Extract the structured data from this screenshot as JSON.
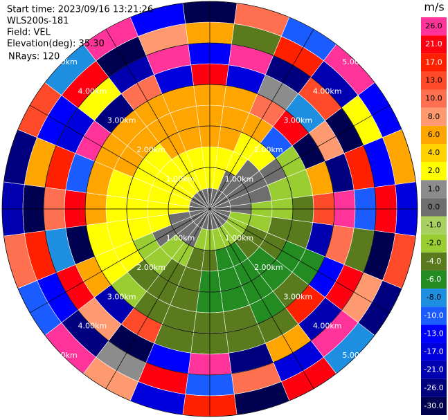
{
  "chart_data": {
    "type": "polar",
    "info": [
      "Start time: 2023/09/16 13:21:26",
      "WLS200s-181",
      "Field: VEL",
      "Elevation(deg): 35.30",
      "NRays: 120"
    ],
    "rlim": [
      0,
      5
    ],
    "range_rings": [
      {
        "value": 1,
        "label": "1.00km"
      },
      {
        "value": 2,
        "label": "2.00km"
      },
      {
        "value": 3,
        "label": "3.00km"
      },
      {
        "value": 4,
        "label": "4.00km"
      },
      {
        "value": 5,
        "label": "5.00km"
      }
    ],
    "azimuths": [
      0,
      15,
      30,
      45,
      60,
      75,
      90,
      105,
      120,
      135,
      150,
      165,
      180,
      195,
      210,
      225,
      240,
      255,
      270,
      285,
      300,
      315,
      330,
      345
    ],
    "range_edges_km": [
      0,
      0.5,
      1,
      1.5,
      2,
      2.5,
      3,
      3.5,
      4,
      4.5,
      5
    ],
    "values": [
      [
        0.5,
        3,
        3,
        7,
        7,
        7,
        23,
        -11,
        7,
        -28
      ],
      [
        0.5,
        3,
        3,
        7,
        7,
        7,
        -15,
        28,
        -3,
        11
      ],
      [
        0.5,
        0.5,
        3,
        3,
        7,
        11,
        1.5,
        -23,
        19,
        -9
      ],
      [
        0.5,
        0.5,
        0.5,
        3,
        -9,
        23,
        -7,
        15,
        -19,
        28
      ],
      [
        0.5,
        0.5,
        0.5,
        0.5,
        -1.5,
        -28,
        9,
        -28,
        3,
        -13
      ],
      [
        0.5,
        0.5,
        0.5,
        -1.5,
        -1.5,
        7,
        -23,
        19,
        -11,
        7
      ],
      [
        0.5,
        0.5,
        -1.5,
        -1.5,
        -3,
        15,
        28,
        -9,
        23,
        -17
      ],
      [
        0.5,
        -1.5,
        -1.5,
        -3,
        -3,
        -19,
        11,
        -3,
        -28,
        15
      ],
      [
        0.5,
        -1.5,
        -3,
        -3,
        -5,
        -5,
        -13,
        23,
        9,
        -23
      ],
      [
        0.5,
        -1.5,
        -3,
        -5,
        -5,
        -3,
        19,
        -19,
        28,
        -7
      ],
      [
        0.5,
        -1.5,
        -5,
        -5,
        -5,
        -5,
        -3,
        7,
        -15,
        23
      ],
      [
        0.5,
        -1.5,
        -5,
        -5,
        -5,
        -3,
        -3,
        -23,
        11,
        -28
      ],
      [
        0.5,
        -1.5,
        -3,
        -5,
        -5,
        -3,
        -3,
        28,
        -9,
        19
      ],
      [
        0.5,
        -1.5,
        -3,
        -3,
        -3,
        -3,
        -3,
        -11,
        23,
        -15
      ],
      [
        0.5,
        0.5,
        -1.5,
        -3,
        -3,
        -3,
        15,
        -28,
        1.5,
        9
      ],
      [
        0.5,
        0.5,
        -1.5,
        -1.5,
        -3,
        -1.5,
        -19,
        9,
        -23,
        28
      ],
      [
        0.5,
        0.5,
        0.5,
        -1.5,
        3,
        3,
        7,
        23,
        -13,
        -9
      ],
      [
        0.5,
        0.5,
        3,
        3,
        3,
        3,
        -28,
        -7,
        19,
        11
      ],
      [
        0.5,
        3,
        3,
        3,
        3,
        7,
        23,
        11,
        -28,
        -19
      ],
      [
        0.5,
        3,
        3,
        3,
        3,
        7,
        -9,
        19,
        7,
        -23
      ],
      [
        0.5,
        3,
        3,
        3,
        7,
        7,
        28,
        -15,
        -11,
        15
      ],
      [
        0.5,
        3,
        3,
        3,
        7,
        7,
        -23,
        3,
        23,
        -7
      ],
      [
        0.5,
        3,
        3,
        7,
        7,
        7,
        11,
        -19,
        -28,
        28
      ],
      [
        0.5,
        3,
        3,
        7,
        7,
        7,
        -15,
        28,
        9,
        -11
      ]
    ],
    "colorbar": {
      "label": "m/s",
      "clim": [
        -30,
        30
      ],
      "ticks": [
        {
          "value": -30,
          "label": "-30.0"
        },
        {
          "value": -26,
          "label": "-26.0"
        },
        {
          "value": -21,
          "label": "-21.0"
        },
        {
          "value": -17,
          "label": "-17.0"
        },
        {
          "value": -13,
          "label": "-13.0"
        },
        {
          "value": -10,
          "label": "-10.0"
        },
        {
          "value": -8,
          "label": "-8.0"
        },
        {
          "value": -6,
          "label": "-6.0"
        },
        {
          "value": -4,
          "label": "-4.0"
        },
        {
          "value": -2,
          "label": "-2.0"
        },
        {
          "value": -1,
          "label": "-1.0"
        },
        {
          "value": 0,
          "label": "0.0"
        },
        {
          "value": 1,
          "label": "1.0"
        },
        {
          "value": 2,
          "label": "2.0"
        },
        {
          "value": 4,
          "label": "4.0"
        },
        {
          "value": 6,
          "label": "6.0"
        },
        {
          "value": 8,
          "label": "8.0"
        },
        {
          "value": 10,
          "label": "10.0"
        },
        {
          "value": 13,
          "label": "13.0"
        },
        {
          "value": 17,
          "label": "17.0"
        },
        {
          "value": 21,
          "label": "21.0"
        },
        {
          "value": 26,
          "label": "26.0"
        }
      ],
      "colors": [
        "#000050",
        "#00007f",
        "#0000b0",
        "#0000dd",
        "#0000ff",
        "#1a5cff",
        "#1e8fe0",
        "#228b22",
        "#5a7a1e",
        "#9acd32",
        "#a8d060",
        "#6e6e6e",
        "#8c8c8c",
        "#ffff00",
        "#ffd200",
        "#ffa500",
        "#ff9a70",
        "#ff7050",
        "#ff4a2a",
        "#ff2000",
        "#ff0010",
        "#ff3399"
      ]
    }
  }
}
